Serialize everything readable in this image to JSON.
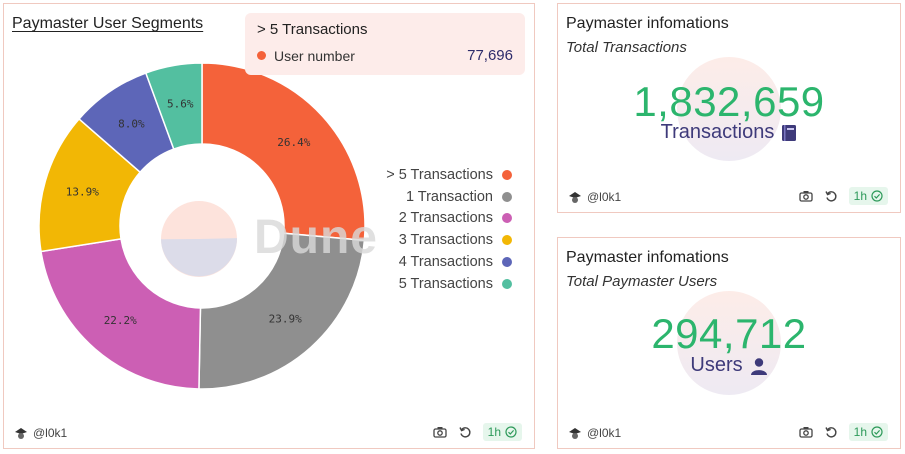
{
  "pie_card": {
    "title": "Paymaster User Segments",
    "watermark": "Dune",
    "tooltip": {
      "title": "> 5 Transactions",
      "label": "User number",
      "value": "77,696",
      "color": "#f4623a"
    },
    "author": "@l0k1",
    "refresh": "1h"
  },
  "chart_data": {
    "type": "pie",
    "title": "Paymaster User Segments",
    "donut": true,
    "legend_position": "right",
    "slices": [
      {
        "label": "> 5 Transactions",
        "value": 26.4,
        "display": "26.4%",
        "color": "#f4623a"
      },
      {
        "label": "1 Transaction",
        "value": 23.9,
        "display": "23.9%",
        "color": "#8f8f8f"
      },
      {
        "label": "2 Transactions",
        "value": 22.2,
        "display": "22.2%",
        "color": "#cc5fb4"
      },
      {
        "label": "3 Transactions",
        "value": 13.9,
        "display": "13.9%",
        "color": "#f2b705"
      },
      {
        "label": "4 Transactions",
        "value": 8.0,
        "display": "8.0%",
        "color": "#5d66b8"
      },
      {
        "label": "5 Transactions",
        "value": 5.6,
        "display": "5.6%",
        "color": "#53bfa0"
      }
    ]
  },
  "tx_card": {
    "title": "Paymaster infomations",
    "subtitle": "Total Transactions",
    "value": "1,832,659",
    "unit": "Transactions",
    "icon": "book-icon",
    "author": "@l0k1",
    "refresh": "1h"
  },
  "users_card": {
    "title": "Paymaster infomations",
    "subtitle": "Total Paymaster Users",
    "value": "294,712",
    "unit": "Users",
    "icon": "user-icon",
    "author": "@l0k1",
    "refresh": "1h"
  }
}
